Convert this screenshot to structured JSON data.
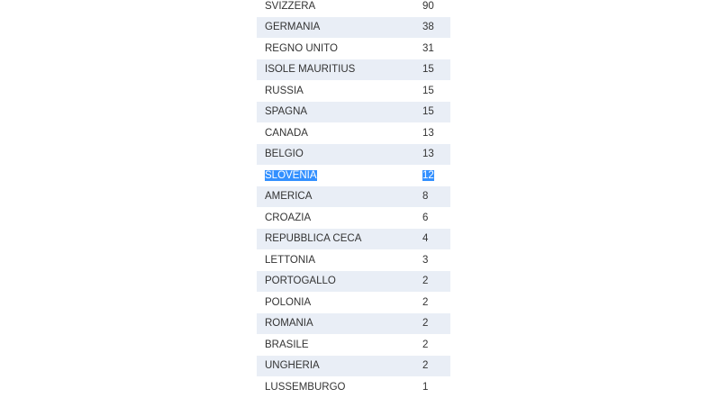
{
  "table": {
    "rows": [
      {
        "country": "SVIZZERA",
        "count": "90"
      },
      {
        "country": "GERMANIA",
        "count": "38"
      },
      {
        "country": "REGNO UNITO",
        "count": "31"
      },
      {
        "country": "ISOLE MAURITIUS",
        "count": "15"
      },
      {
        "country": "RUSSIA",
        "count": "15"
      },
      {
        "country": "SPAGNA",
        "count": "15"
      },
      {
        "country": "CANADA",
        "count": "13"
      },
      {
        "country": "BELGIO",
        "count": "13"
      },
      {
        "country": "SLOVENIA",
        "count": "12",
        "selected": true
      },
      {
        "country": "AMERICA",
        "count": "8"
      },
      {
        "country": "CROAZIA",
        "count": "6"
      },
      {
        "country": "REPUBBLICA CECA",
        "count": "4"
      },
      {
        "country": "LETTONIA",
        "count": "3"
      },
      {
        "country": "PORTOGALLO",
        "count": "2"
      },
      {
        "country": "POLONIA",
        "count": "2"
      },
      {
        "country": "ROMANIA",
        "count": "2"
      },
      {
        "country": "BRASILE",
        "count": "2"
      },
      {
        "country": "UNGHERIA",
        "count": "2"
      },
      {
        "country": "LUSSEMBURGO",
        "count": "1"
      }
    ]
  },
  "colors": {
    "row_alt": "#e9eef6",
    "selection": "#3390ff"
  }
}
